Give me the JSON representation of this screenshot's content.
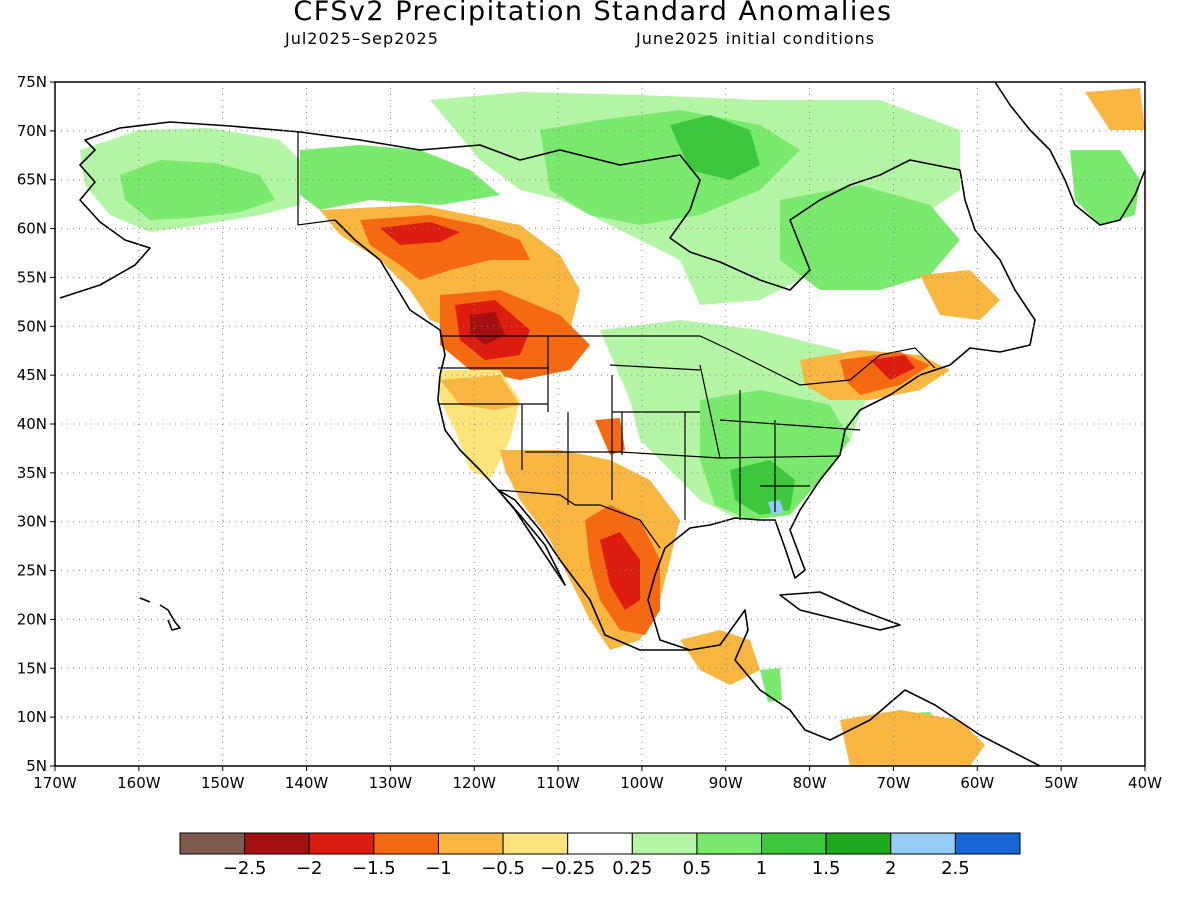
{
  "title": "CFSv2 Precipitation Standard Anomalies",
  "subtitle_left": "Jul2025–Sep2025",
  "subtitle_right": "June2025 initial conditions",
  "map": {
    "lon_range": [
      -170,
      -40
    ],
    "lat_range": [
      5,
      75
    ],
    "lat_ticks": [
      "75N",
      "70N",
      "65N",
      "60N",
      "55N",
      "50N",
      "45N",
      "40N",
      "35N",
      "30N",
      "25N",
      "20N",
      "15N",
      "10N",
      "5N"
    ],
    "lon_ticks": [
      "170W",
      "160W",
      "150W",
      "140W",
      "130W",
      "120W",
      "110W",
      "100W",
      "90W",
      "80W",
      "70W",
      "60W",
      "50W",
      "40W"
    ],
    "grid": true
  },
  "colorbar": {
    "colors": [
      "#7f5a4f",
      "#a50f0f",
      "#dd1c10",
      "#f56a10",
      "#f9b640",
      "#fbe57a",
      "#ffffff",
      "#b5f5a6",
      "#7aea6e",
      "#3dc73d",
      "#1ea91e",
      "#94cdf5",
      "#1666d6"
    ],
    "labels": [
      "−2.5",
      "−2",
      "−1.5",
      "−1",
      "−0.5",
      "−0.25",
      "0.25",
      "0.5",
      "1",
      "1.5",
      "2",
      "2.5"
    ]
  },
  "anomaly_colors": {
    "neg_strong": "#a50f0f",
    "neg_high": "#dd1c10",
    "neg_mod": "#f56a10",
    "neg_weak": "#f9b640",
    "neg_slight": "#fbe57a",
    "pos_slight": "#b5f5a6",
    "pos_weak": "#7aea6e",
    "pos_mod": "#3dc73d",
    "pos_high": "#1ea91e",
    "pos_strong": "#94cdf5"
  }
}
